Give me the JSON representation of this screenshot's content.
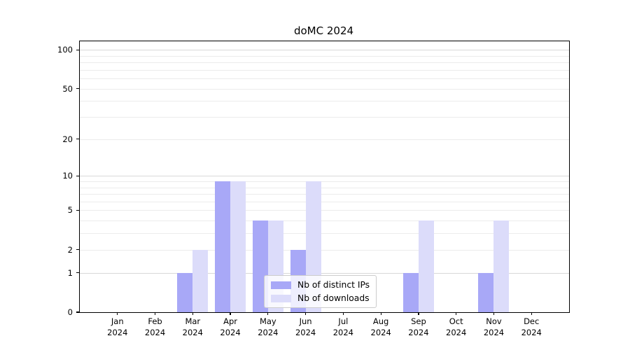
{
  "chart_data": {
    "type": "bar",
    "title": "doMC 2024",
    "categories": [
      "Jan",
      "Feb",
      "Mar",
      "Apr",
      "May",
      "Jun",
      "Jul",
      "Aug",
      "Sep",
      "Oct",
      "Nov",
      "Dec"
    ],
    "x_sublabel": "2024",
    "series": [
      {
        "name": "Nb of distinct IPs",
        "color": "#a8a8f7",
        "values": [
          0,
          0,
          1,
          9,
          4,
          2,
          0,
          0,
          1,
          0,
          1,
          0
        ]
      },
      {
        "name": "Nb of downloads",
        "color": "#dcdcfa",
        "values": [
          0,
          0,
          2,
          9,
          4,
          9,
          0,
          0,
          4,
          0,
          4,
          0
        ]
      }
    ],
    "y_scale": "log1p",
    "y_ticks": [
      0,
      1,
      2,
      5,
      10,
      20,
      50,
      100
    ],
    "y_minor_gridlines": [
      2,
      3,
      4,
      5,
      6,
      7,
      8,
      9,
      20,
      30,
      40,
      50,
      60,
      70,
      80,
      90
    ],
    "y_major_gridlines": [
      1,
      10,
      100
    ],
    "ylim": [
      0,
      116
    ],
    "grid": true,
    "legend_position": "lower center"
  }
}
